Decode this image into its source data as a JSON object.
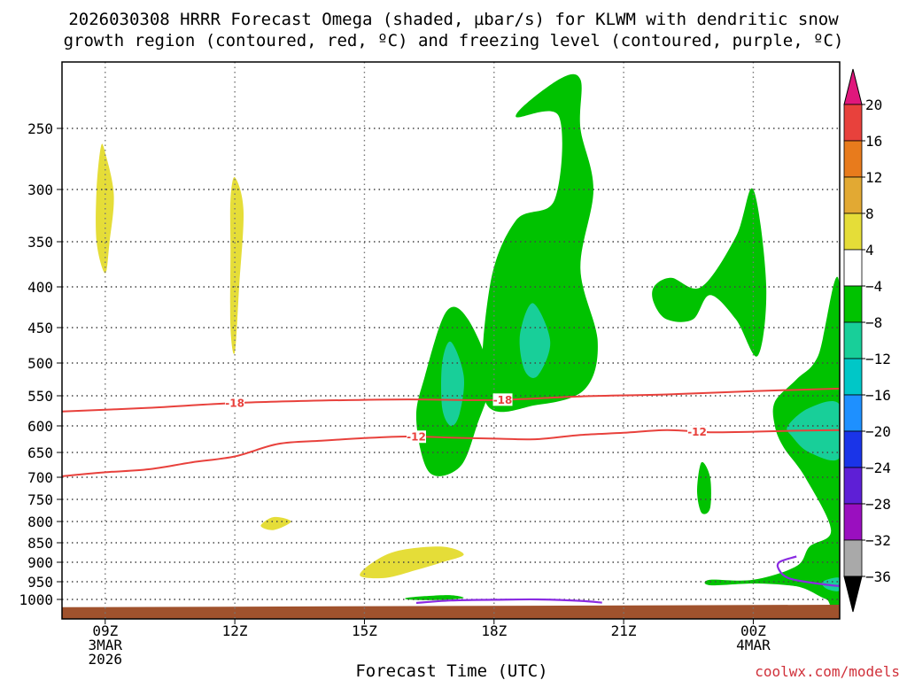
{
  "chart_data": {
    "type": "time-height",
    "title_line1": "2026030308 HRRR Forecast Omega (shaded, µbar/s) for KLWM with dendritic snow",
    "title_line2": "growth region (contoured, red, ºC) and freezing level (contoured, purple, ºC)",
    "xlabel": "Forecast Time (UTC)",
    "credit": "coolwx.com/models",
    "x_range_hours": [
      8,
      26
    ],
    "x_ticks": [
      {
        "hour": 9,
        "lines": [
          "09Z",
          "3MAR",
          "2026"
        ]
      },
      {
        "hour": 12,
        "lines": [
          "12Z"
        ]
      },
      {
        "hour": 15,
        "lines": [
          "15Z"
        ]
      },
      {
        "hour": 18,
        "lines": [
          "18Z"
        ]
      },
      {
        "hour": 21,
        "lines": [
          "21Z"
        ]
      },
      {
        "hour": 24,
        "lines": [
          "00Z",
          "4MAR"
        ]
      }
    ],
    "y_ticks": [
      250,
      300,
      350,
      400,
      450,
      500,
      550,
      600,
      650,
      700,
      750,
      800,
      850,
      900,
      950,
      1000
    ],
    "y_range_hpa": [
      200,
      1022
    ],
    "grid": true,
    "contours": [
      {
        "value_label": "-18",
        "color": "#e8413c",
        "label_positions": [
          12,
          18.2
        ],
        "points": [
          [
            8,
            576
          ],
          [
            10,
            570
          ],
          [
            12,
            562
          ],
          [
            14,
            558
          ],
          [
            16,
            556
          ],
          [
            18,
            557
          ],
          [
            20,
            551
          ],
          [
            22,
            548
          ],
          [
            24,
            543
          ],
          [
            26,
            539
          ]
        ]
      },
      {
        "value_label": "-12",
        "color": "#e8413c",
        "label_positions": [
          16.2,
          22.7
        ],
        "points": [
          [
            8,
            698
          ],
          [
            9,
            690
          ],
          [
            10,
            684
          ],
          [
            11,
            670
          ],
          [
            12,
            658
          ],
          [
            13,
            634
          ],
          [
            14,
            628
          ],
          [
            15,
            623
          ],
          [
            16,
            620
          ],
          [
            17,
            622
          ],
          [
            18,
            624
          ],
          [
            19,
            625
          ],
          [
            20,
            617
          ],
          [
            21,
            613
          ],
          [
            22,
            608
          ],
          [
            23,
            612
          ],
          [
            24,
            611
          ],
          [
            25,
            609
          ],
          [
            26,
            608
          ]
        ]
      }
    ],
    "freezing_level": {
      "color": "#8a2be2",
      "segments": [
        [
          [
            16.2,
            1010
          ],
          [
            17,
            1003
          ],
          [
            18,
            1001
          ],
          [
            19,
            1000
          ],
          [
            20,
            1004
          ],
          [
            20.5,
            1009
          ]
        ],
        [
          [
            25,
            885
          ],
          [
            24.6,
            900
          ],
          [
            24.6,
            920
          ],
          [
            24.8,
            940
          ],
          [
            25.2,
            950
          ],
          [
            25.8,
            960
          ],
          [
            26,
            962
          ]
        ]
      ]
    },
    "omega_regions": [
      {
        "value_range": [
          4,
          8
        ],
        "color": "#e5dd38",
        "points": [
          [
            9,
            270
          ],
          [
            9.2,
            305
          ],
          [
            9.1,
            350
          ],
          [
            9,
            385
          ],
          [
            8.8,
            350
          ],
          [
            8.8,
            300
          ],
          [
            8.9,
            265
          ]
        ]
      },
      {
        "value_range": [
          4,
          8
        ],
        "color": "#e5dd38",
        "points": [
          [
            12,
            290
          ],
          [
            12.2,
            320
          ],
          [
            12.1,
            400
          ],
          [
            12,
            485
          ],
          [
            11.9,
            450
          ],
          [
            11.9,
            360
          ],
          [
            11.9,
            310
          ]
        ]
      },
      {
        "value_range": [
          4,
          8
        ],
        "color": "#e5dd38",
        "points": [
          [
            12.6,
            810
          ],
          [
            12.9,
            790
          ],
          [
            13.3,
            800
          ],
          [
            12.9,
            820
          ]
        ]
      },
      {
        "value_range": [
          4,
          8
        ],
        "color": "#e5dd38",
        "points": [
          [
            14.9,
            935
          ],
          [
            15.2,
            900
          ],
          [
            15.8,
            870
          ],
          [
            16.8,
            860
          ],
          [
            17.3,
            880
          ],
          [
            16.8,
            900
          ],
          [
            16.2,
            920
          ],
          [
            15.5,
            940
          ]
        ]
      },
      {
        "value_range": [
          -8,
          -4
        ],
        "color": "#00c200",
        "points": [
          [
            16.2,
            590
          ],
          [
            16.4,
            520
          ],
          [
            16.9,
            430
          ],
          [
            17.4,
            440
          ],
          [
            17.9,
            520
          ],
          [
            17.6,
            600
          ],
          [
            17.2,
            680
          ],
          [
            16.5,
            690
          ]
        ]
      },
      {
        "value_range": [
          -8,
          -4
        ],
        "color": "#00c200",
        "points": [
          [
            17.9,
            400
          ],
          [
            18.5,
            330
          ],
          [
            19.4,
            310
          ],
          [
            19.5,
            240
          ],
          [
            18.5,
            240
          ],
          [
            19.5,
            210
          ],
          [
            20.0,
            210
          ],
          [
            20.0,
            250
          ],
          [
            20.3,
            300
          ],
          [
            20.0,
            380
          ],
          [
            20.4,
            470
          ],
          [
            20.1,
            540
          ],
          [
            19.0,
            565
          ],
          [
            17.8,
            560
          ]
        ]
      },
      {
        "value_range": [
          -8,
          -4
        ],
        "color": "#00c200",
        "points": [
          [
            21.7,
            400
          ],
          [
            22.1,
            390
          ],
          [
            22.8,
            400
          ],
          [
            23.6,
            345
          ],
          [
            24.0,
            300
          ],
          [
            24.3,
            400
          ],
          [
            24.1,
            490
          ],
          [
            23.6,
            440
          ],
          [
            23.0,
            410
          ],
          [
            22.6,
            440
          ],
          [
            22.0,
            440
          ],
          [
            21.7,
            420
          ]
        ]
      },
      {
        "value_range": [
          -8,
          -4
        ],
        "color": "#00c200",
        "points": [
          [
            22.8,
            670
          ],
          [
            23.0,
            700
          ],
          [
            23.0,
            770
          ],
          [
            22.8,
            780
          ],
          [
            22.7,
            730
          ]
        ]
      },
      {
        "value_range": [
          -8,
          -4
        ],
        "color": "#00c200",
        "points": [
          [
            24.5,
            560
          ],
          [
            25.0,
            525
          ],
          [
            25.5,
            490
          ],
          [
            26,
            400
          ],
          [
            26,
            1002
          ],
          [
            25.7,
            1000
          ],
          [
            25.2,
            970
          ],
          [
            24.8,
            960
          ],
          [
            24.0,
            955
          ],
          [
            23.0,
            960
          ],
          [
            23.0,
            945
          ],
          [
            24.0,
            945
          ],
          [
            25.0,
            910
          ],
          [
            25.3,
            860
          ],
          [
            25.8,
            820
          ],
          [
            25.2,
            700
          ],
          [
            24.7,
            640
          ],
          [
            24.5,
            600
          ]
        ]
      },
      {
        "value_range": [
          -8,
          -4
        ],
        "color": "#00c200",
        "points": [
          [
            16.0,
            995
          ],
          [
            16.5,
            990
          ],
          [
            17.0,
            988
          ],
          [
            17.3,
            995
          ],
          [
            17.0,
            1000
          ],
          [
            16.5,
            1002
          ],
          [
            16.0,
            1000
          ]
        ]
      },
      {
        "value_range": [
          -12,
          -8
        ],
        "color": "#18cf99",
        "points": [
          [
            16.8,
            500
          ],
          [
            17.0,
            470
          ],
          [
            17.3,
            520
          ],
          [
            17.2,
            580
          ],
          [
            17.0,
            600
          ],
          [
            16.8,
            570
          ]
        ]
      },
      {
        "value_range": [
          -12,
          -8
        ],
        "color": "#18cf99",
        "points": [
          [
            18.6,
            460
          ],
          [
            18.9,
            420
          ],
          [
            19.3,
            470
          ],
          [
            19.0,
            520
          ],
          [
            18.7,
            510
          ]
        ]
      },
      {
        "value_range": [
          -12,
          -8
        ],
        "color": "#18cf99",
        "points": [
          [
            24.8,
            600
          ],
          [
            25.3,
            570
          ],
          [
            26,
            565
          ],
          [
            26,
            660
          ],
          [
            25.3,
            650
          ],
          [
            24.9,
            620
          ]
        ]
      },
      {
        "value_range": [
          -12,
          -8
        ],
        "color": "#18cf99",
        "points": [
          [
            25.6,
            950
          ],
          [
            26,
            940
          ],
          [
            26,
            975
          ],
          [
            25.7,
            970
          ]
        ]
      }
    ],
    "colorbar": {
      "labels": [
        "20",
        "16",
        "12",
        "8",
        "4",
        "−4",
        "−8",
        "−12",
        "−16",
        "−20",
        "−24",
        "−28",
        "−32",
        "−36"
      ],
      "top_cap_color": "#e0177c",
      "bottom_cap_color": "#000000",
      "colors": [
        "#e8413c",
        "#e87b1c",
        "#e2a933",
        "#e5dd38",
        "#ffffff",
        "#00c200",
        "#18cf99",
        "#00c7c7",
        "#1e90ff",
        "#1a34e8",
        "#5e1fd6",
        "#9a0fbf",
        "#a9a9a9"
      ]
    }
  }
}
